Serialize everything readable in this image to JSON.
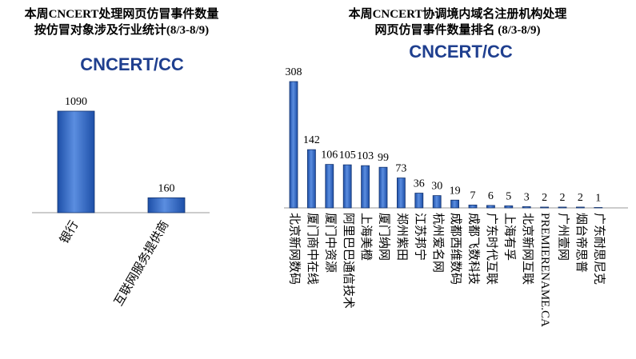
{
  "chart_data": [
    {
      "type": "bar",
      "title": [
        "本周CNCERT处理网页仿冒事件数量",
        "按仿冒对象涉及行业统计(8/3-8/9)"
      ],
      "logo": "CNCERT/CC",
      "categories": [
        "银行",
        "互联网服务提供商"
      ],
      "values": [
        1090,
        160
      ],
      "color": "#2f64c0"
    },
    {
      "type": "bar",
      "title": [
        "本周CNCERT协调境内域名注册机构处理",
        "网页仿冒事件数量排名 (8/3-8/9)"
      ],
      "logo": "CNCERT/CC",
      "categories": [
        "北京新网数码",
        "厦门商中在线",
        "厦门中资源",
        "阿里巴巴通信技术",
        "上海美橙",
        "厦门纳网",
        "郑州紫田",
        "江苏邦宁",
        "杭州爱名网",
        "成都西维数码",
        "成都飞数科技",
        "广东时代互联",
        "上海有孚",
        "北京新网互联",
        "PREMIERENAME.CA",
        "广州壹网",
        "烟台帝思普",
        "广东耐思尼克"
      ],
      "values": [
        308,
        142,
        106,
        105,
        103,
        99,
        73,
        36,
        30,
        19,
        7,
        6,
        5,
        3,
        2,
        2,
        2,
        1
      ],
      "color": "#2f64c0"
    }
  ]
}
